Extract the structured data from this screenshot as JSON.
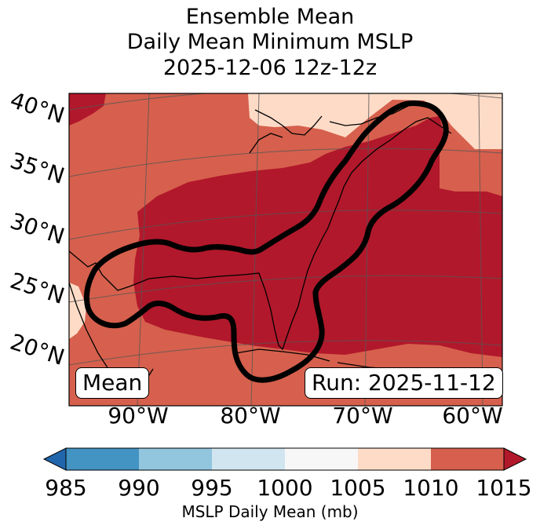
{
  "title": {
    "line1": "Ensemble Mean",
    "line2": "Daily Mean Minimum MSLP",
    "line3": "2025-12-06 12z-12z"
  },
  "map": {
    "lat_labels": [
      "40°N",
      "35°N",
      "30°N",
      "25°N",
      "20°N"
    ],
    "lon_labels": [
      "90°W",
      "80°W",
      "70°W",
      "60°W"
    ],
    "mean_box": "Mean",
    "run_box": "Run: 2025-11-12",
    "contour_color": "#000000",
    "fill_colors": {
      "1000-1005": "#f7f7f7",
      "1005-1010": "#fddbc7",
      "1010-1015": "#d6604d",
      ">1015": "#b2182b"
    }
  },
  "colorbar": {
    "label": "MSLP Daily Mean (mb)",
    "ticks": [
      "985",
      "990",
      "995",
      "1000",
      "1005",
      "1010",
      "1015"
    ],
    "colors": [
      "#2166ac",
      "#4393c3",
      "#92c5de",
      "#d1e5f0",
      "#f7f7f7",
      "#fddbc7",
      "#d6604d",
      "#b2182b"
    ]
  }
}
